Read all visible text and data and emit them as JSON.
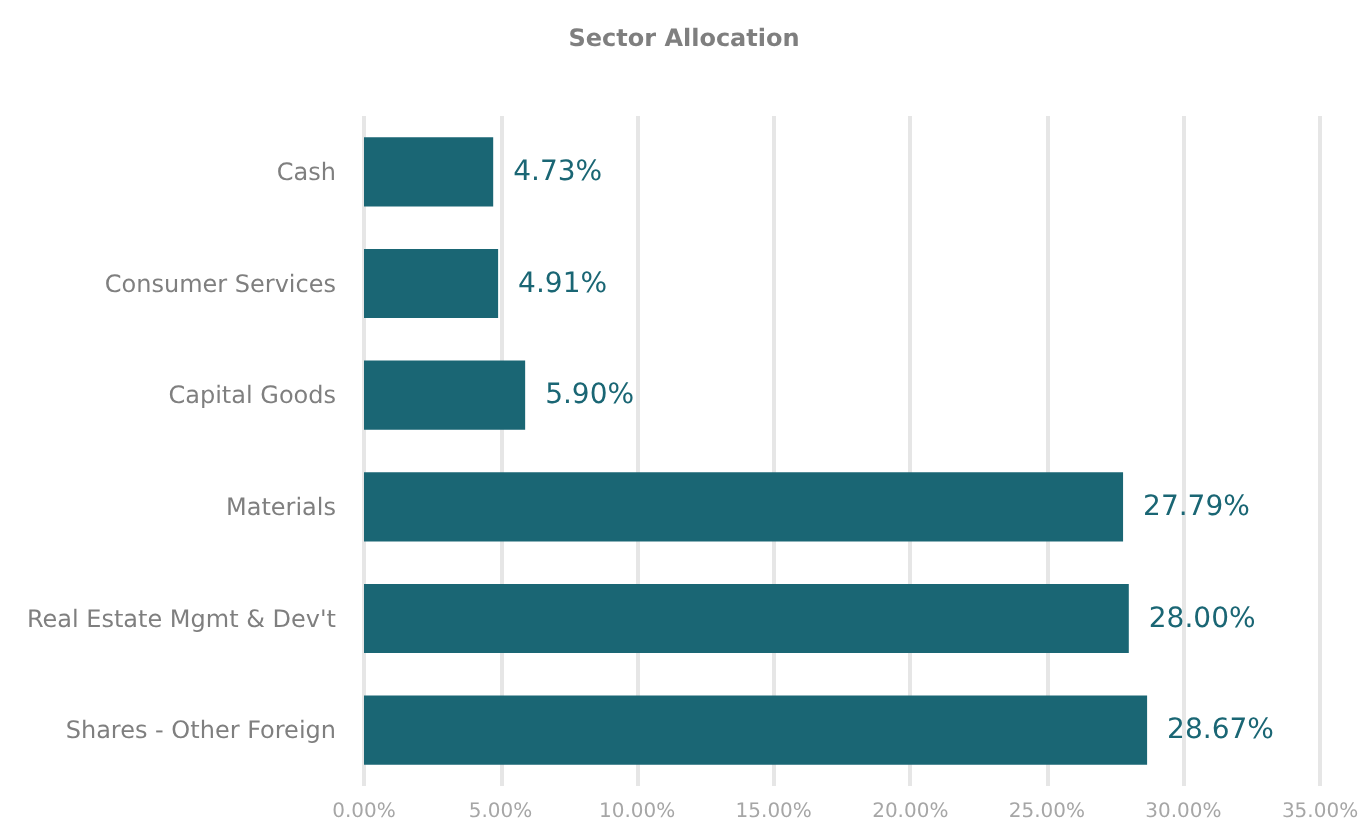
{
  "chart_data": {
    "type": "bar",
    "orientation": "horizontal",
    "title": "Sector Allocation",
    "categories": [
      "Cash",
      "Consumer Services",
      "Capital Goods",
      "Materials",
      "Real Estate Mgmt & Dev't",
      "Shares - Other Foreign"
    ],
    "values": [
      4.73,
      4.91,
      5.9,
      27.79,
      28.0,
      28.67
    ],
    "value_labels": [
      "4.73%",
      "4.91%",
      "5.90%",
      "27.79%",
      "28.00%",
      "28.67%"
    ],
    "color": "#1a6674",
    "xlim": [
      0,
      35
    ],
    "xticks": [
      {
        "value": 0,
        "label": "0.00%"
      },
      {
        "value": 5,
        "label": "5.00%"
      },
      {
        "value": 10,
        "label": "10.00%"
      },
      {
        "value": 15,
        "label": "15.00%"
      },
      {
        "value": 20,
        "label": "20.00%"
      },
      {
        "value": 25,
        "label": "25.00%"
      },
      {
        "value": 30,
        "label": "30.00%"
      },
      {
        "value": 35,
        "label": "35.00%"
      }
    ],
    "grid": "x"
  }
}
